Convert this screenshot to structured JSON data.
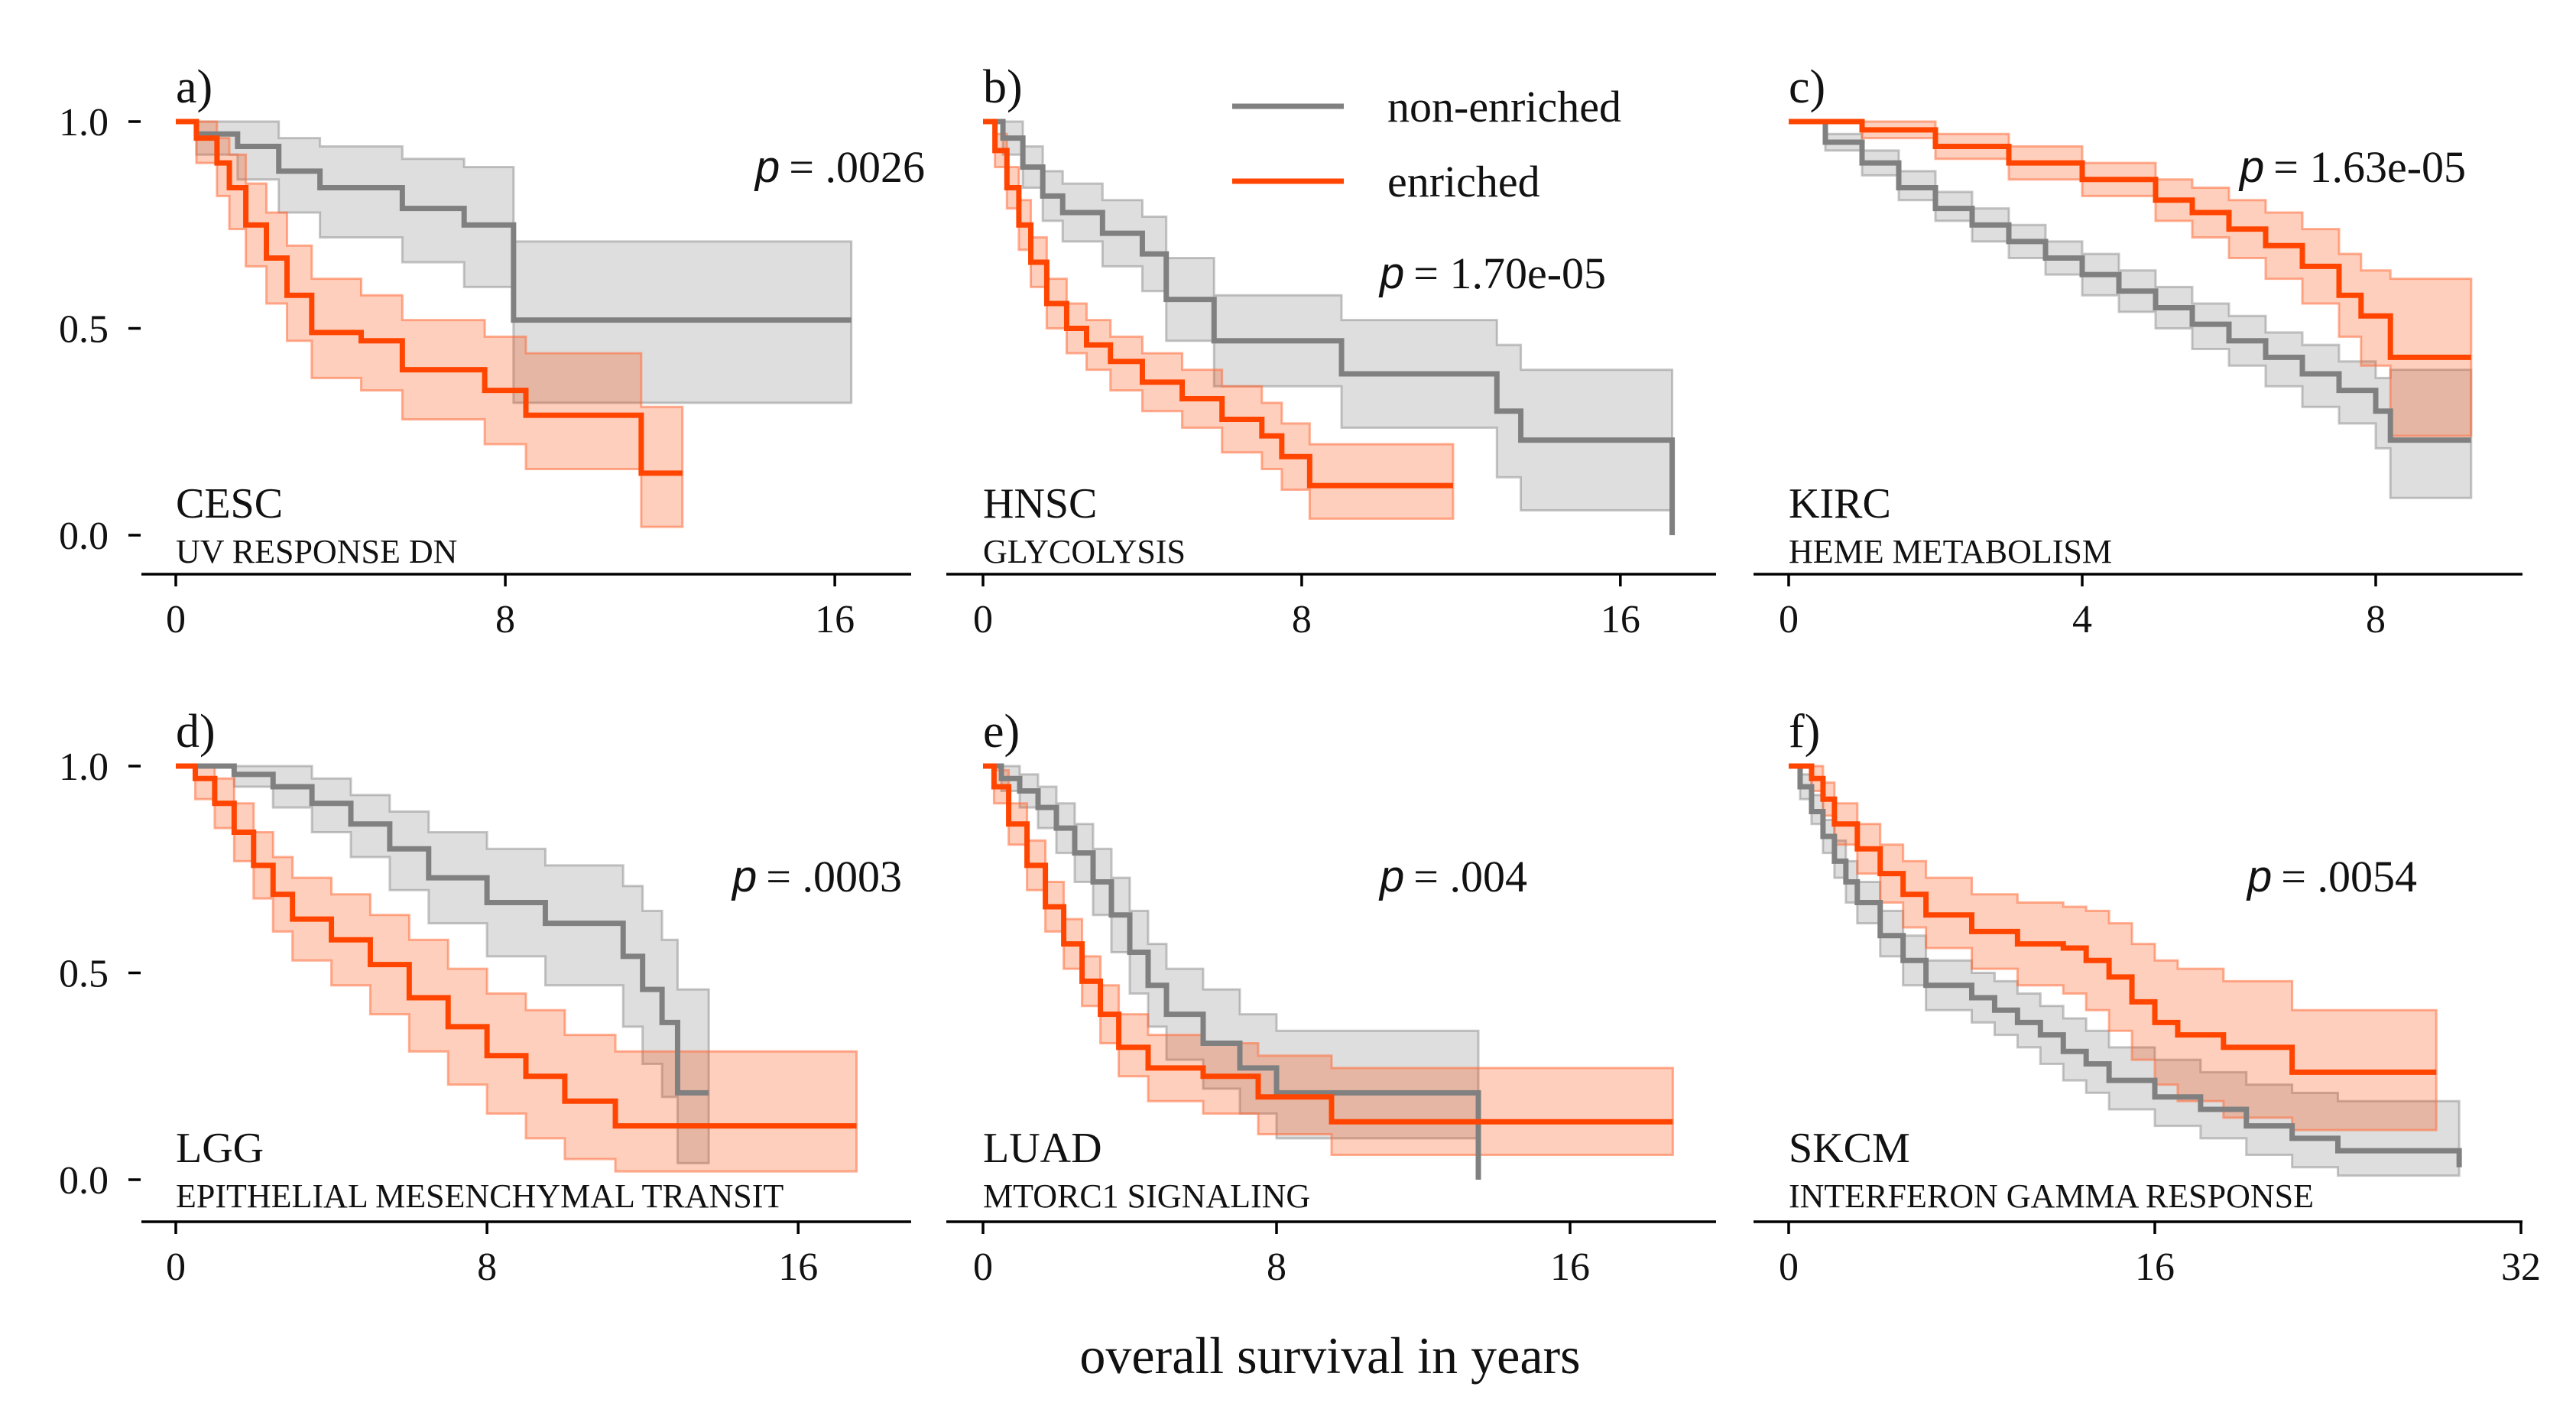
{
  "figure": {
    "xlabel": "overall survival in years",
    "legend": {
      "position": "top-center",
      "entries": [
        "non-enriched",
        "enriched"
      ]
    },
    "p_symbol": "p",
    "colors": {
      "non_enriched": "#808080",
      "enriched": "#ff4500"
    }
  },
  "chart_data": [
    {
      "type": "line",
      "panel": "a)",
      "cancer": "CESC",
      "gene_set": "UV RESPONSE DN",
      "p_value": "= .0026",
      "xlim": [
        0,
        17
      ],
      "ylim": [
        0,
        1
      ],
      "xticks": [
        "0",
        "8",
        "16"
      ],
      "yticks": [
        "0.0",
        "0.5",
        "1.0"
      ],
      "series": [
        {
          "name": "non-enriched",
          "x": [
            0,
            0.5,
            1.5,
            2.5,
            3.5,
            5.5,
            7,
            8.2,
            8.2,
            16.4
          ],
          "y": [
            1.0,
            0.97,
            0.94,
            0.88,
            0.84,
            0.79,
            0.75,
            0.7,
            0.52,
            0.52
          ],
          "lo": [
            1.0,
            0.92,
            0.86,
            0.78,
            0.72,
            0.66,
            0.6,
            0.53,
            0.32,
            0.32
          ],
          "hi": [
            1.0,
            1.0,
            1.0,
            0.96,
            0.94,
            0.91,
            0.89,
            0.86,
            0.71,
            0.71
          ]
        },
        {
          "name": "enriched",
          "x": [
            0,
            0.5,
            1,
            1.3,
            1.7,
            2.2,
            2.7,
            3.3,
            4.5,
            5.5,
            7.5,
            8.5,
            11.3,
            11.3,
            12.3
          ],
          "y": [
            1.0,
            0.96,
            0.9,
            0.84,
            0.75,
            0.67,
            0.58,
            0.49,
            0.47,
            0.4,
            0.35,
            0.29,
            0.29,
            0.15,
            0.15
          ],
          "lo": [
            1.0,
            0.9,
            0.82,
            0.74,
            0.65,
            0.56,
            0.47,
            0.38,
            0.35,
            0.28,
            0.22,
            0.16,
            0.1,
            0.02,
            0.02
          ],
          "hi": [
            1.0,
            1.0,
            0.96,
            0.92,
            0.85,
            0.78,
            0.7,
            0.62,
            0.58,
            0.52,
            0.48,
            0.44,
            0.44,
            0.31,
            0.31
          ]
        }
      ]
    },
    {
      "type": "line",
      "panel": "b)",
      "cancer": "HNSC",
      "gene_set": "GLYCOLYSIS",
      "p_value": "= 1.70e-05",
      "xlim": [
        0,
        17.5
      ],
      "ylim": [
        0,
        1
      ],
      "xticks": [
        "0",
        "8",
        "16"
      ],
      "yticks": [],
      "series": [
        {
          "name": "non-enriched",
          "x": [
            0,
            0.5,
            1,
            1.5,
            2,
            3,
            4,
            4.6,
            5.8,
            9,
            12.9,
            13.5,
            17.3,
            17.3
          ],
          "y": [
            1.0,
            0.96,
            0.89,
            0.82,
            0.78,
            0.73,
            0.68,
            0.57,
            0.47,
            0.39,
            0.3,
            0.23,
            0.16,
            0.0
          ],
          "lo": [
            1.0,
            0.92,
            0.84,
            0.76,
            0.71,
            0.65,
            0.59,
            0.47,
            0.36,
            0.26,
            0.14,
            0.06,
            0.02,
            0.0
          ],
          "hi": [
            1.0,
            1.0,
            0.94,
            0.88,
            0.85,
            0.81,
            0.77,
            0.67,
            0.58,
            0.52,
            0.46,
            0.4,
            0.36,
            0.36
          ]
        },
        {
          "name": "enriched",
          "x": [
            0,
            0.3,
            0.6,
            0.9,
            1.2,
            1.6,
            2.1,
            2.6,
            3.2,
            4,
            5,
            6,
            7,
            7.5,
            8.2,
            11.8
          ],
          "y": [
            1.0,
            0.93,
            0.84,
            0.75,
            0.66,
            0.56,
            0.5,
            0.46,
            0.42,
            0.37,
            0.33,
            0.28,
            0.24,
            0.19,
            0.12,
            0.12
          ],
          "lo": [
            1.0,
            0.89,
            0.79,
            0.69,
            0.6,
            0.5,
            0.44,
            0.4,
            0.35,
            0.3,
            0.26,
            0.2,
            0.16,
            0.11,
            0.04,
            0.04
          ],
          "hi": [
            1.0,
            0.97,
            0.89,
            0.81,
            0.72,
            0.62,
            0.56,
            0.52,
            0.48,
            0.44,
            0.4,
            0.36,
            0.32,
            0.27,
            0.22,
            0.22
          ]
        }
      ]
    },
    {
      "type": "line",
      "panel": "c)",
      "cancer": "KIRC",
      "gene_set": "HEME METABOLISM",
      "p_value": "= 1.63e-05",
      "xlim": [
        0,
        9.5
      ],
      "ylim": [
        0,
        1
      ],
      "xticks": [
        "0",
        "4",
        "8"
      ],
      "yticks": [],
      "series": [
        {
          "name": "non-enriched",
          "x": [
            0,
            0.5,
            1,
            1.5,
            2,
            2.5,
            3,
            3.5,
            4,
            4.5,
            5,
            5.5,
            6,
            6.5,
            7,
            7.5,
            8,
            8.2,
            9.3
          ],
          "y": [
            1.0,
            0.95,
            0.9,
            0.84,
            0.79,
            0.75,
            0.71,
            0.67,
            0.63,
            0.59,
            0.55,
            0.51,
            0.47,
            0.43,
            0.39,
            0.35,
            0.3,
            0.23,
            0.23
          ],
          "lo": [
            1.0,
            0.93,
            0.87,
            0.81,
            0.76,
            0.71,
            0.67,
            0.63,
            0.58,
            0.54,
            0.5,
            0.45,
            0.41,
            0.36,
            0.31,
            0.27,
            0.21,
            0.09,
            0.09
          ],
          "hi": [
            1.0,
            0.97,
            0.93,
            0.88,
            0.83,
            0.79,
            0.75,
            0.71,
            0.68,
            0.64,
            0.6,
            0.56,
            0.53,
            0.49,
            0.46,
            0.42,
            0.38,
            0.4,
            0.4
          ]
        },
        {
          "name": "enriched",
          "x": [
            0,
            1,
            2,
            3,
            4,
            5,
            5.5,
            6,
            6.5,
            7,
            7.5,
            7.8,
            8.2,
            9.3
          ],
          "y": [
            1.0,
            0.98,
            0.94,
            0.9,
            0.86,
            0.81,
            0.78,
            0.74,
            0.7,
            0.65,
            0.58,
            0.53,
            0.43,
            0.43
          ],
          "lo": [
            1.0,
            0.96,
            0.91,
            0.86,
            0.82,
            0.76,
            0.72,
            0.67,
            0.62,
            0.56,
            0.48,
            0.41,
            0.24,
            0.24
          ],
          "hi": [
            1.0,
            1.0,
            0.97,
            0.94,
            0.9,
            0.86,
            0.84,
            0.81,
            0.78,
            0.74,
            0.68,
            0.64,
            0.62,
            0.62
          ]
        }
      ]
    },
    {
      "type": "line",
      "panel": "d)",
      "cancer": "LGG",
      "gene_set": "EPITHELIAL MESENCHYMAL TRANSIT",
      "p_value": "= .0003",
      "xlim": [
        0,
        18
      ],
      "ylim": [
        0,
        1
      ],
      "xticks": [
        "0",
        "8",
        "16"
      ],
      "yticks": [
        "0.0",
        "0.5",
        "1.0"
      ],
      "series": [
        {
          "name": "non-enriched",
          "x": [
            0,
            1.5,
            2.5,
            3.5,
            4.5,
            5.5,
            6.5,
            8,
            9.5,
            11.5,
            12,
            12.5,
            12.9,
            12.9,
            13.7
          ],
          "y": [
            1.0,
            0.98,
            0.95,
            0.91,
            0.86,
            0.8,
            0.73,
            0.67,
            0.62,
            0.54,
            0.46,
            0.38,
            0.3,
            0.21,
            0.21
          ],
          "lo": [
            1.0,
            0.95,
            0.9,
            0.84,
            0.78,
            0.7,
            0.62,
            0.54,
            0.47,
            0.37,
            0.28,
            0.2,
            0.12,
            0.04,
            0.04
          ],
          "hi": [
            1.0,
            1.0,
            1.0,
            0.97,
            0.93,
            0.89,
            0.84,
            0.8,
            0.76,
            0.71,
            0.65,
            0.58,
            0.48,
            0.46,
            0.46
          ]
        },
        {
          "name": "enriched",
          "x": [
            0,
            0.5,
            1,
            1.5,
            2,
            2.5,
            3,
            4,
            5,
            6,
            7,
            8,
            9,
            10,
            11.3,
            17.5
          ],
          "y": [
            1.0,
            0.97,
            0.91,
            0.84,
            0.76,
            0.69,
            0.63,
            0.58,
            0.52,
            0.44,
            0.37,
            0.3,
            0.25,
            0.19,
            0.13,
            0.13
          ],
          "lo": [
            1.0,
            0.92,
            0.85,
            0.77,
            0.68,
            0.6,
            0.53,
            0.47,
            0.4,
            0.31,
            0.23,
            0.16,
            0.1,
            0.05,
            0.02,
            0.02
          ],
          "hi": [
            1.0,
            1.0,
            0.97,
            0.91,
            0.84,
            0.78,
            0.73,
            0.69,
            0.64,
            0.58,
            0.51,
            0.45,
            0.41,
            0.35,
            0.31,
            0.31
          ]
        }
      ]
    },
    {
      "type": "line",
      "panel": "e)",
      "cancer": "LUAD",
      "gene_set": "MTORC1 SIGNALING",
      "p_value": "= .004",
      "xlim": [
        0,
        19
      ],
      "ylim": [
        0,
        1
      ],
      "xticks": [
        "0",
        "8",
        "16"
      ],
      "yticks": [],
      "series": [
        {
          "name": "non-enriched",
          "x": [
            0,
            0.5,
            1,
            1.5,
            2,
            2.5,
            3,
            3.5,
            4,
            4.5,
            5,
            6,
            7,
            8,
            13.5,
            13.5
          ],
          "y": [
            1.0,
            0.97,
            0.94,
            0.9,
            0.85,
            0.79,
            0.72,
            0.64,
            0.55,
            0.47,
            0.4,
            0.33,
            0.27,
            0.21,
            0.21,
            0.0
          ],
          "lo": [
            1.0,
            0.94,
            0.9,
            0.85,
            0.79,
            0.72,
            0.64,
            0.55,
            0.45,
            0.37,
            0.29,
            0.22,
            0.16,
            0.1,
            0.1,
            0.0
          ],
          "hi": [
            1.0,
            1.0,
            0.98,
            0.95,
            0.91,
            0.86,
            0.8,
            0.73,
            0.65,
            0.57,
            0.51,
            0.46,
            0.4,
            0.36,
            0.36,
            0.36
          ]
        },
        {
          "name": "enriched",
          "x": [
            0,
            0.3,
            0.7,
            1.2,
            1.7,
            2.2,
            2.7,
            3.2,
            3.7,
            4.5,
            6,
            7.5,
            9.5,
            18.8
          ],
          "y": [
            1.0,
            0.95,
            0.86,
            0.76,
            0.66,
            0.57,
            0.48,
            0.4,
            0.32,
            0.27,
            0.25,
            0.2,
            0.14,
            0.14
          ],
          "lo": [
            1.0,
            0.91,
            0.81,
            0.7,
            0.6,
            0.51,
            0.42,
            0.33,
            0.25,
            0.19,
            0.16,
            0.11,
            0.06,
            0.06
          ],
          "hi": [
            1.0,
            0.99,
            0.91,
            0.82,
            0.72,
            0.63,
            0.54,
            0.47,
            0.4,
            0.35,
            0.33,
            0.3,
            0.27,
            0.27
          ]
        }
      ]
    },
    {
      "type": "line",
      "panel": "f)",
      "cancer": "SKCM",
      "gene_set": "INTERFERON GAMMA RESPONSE",
      "p_value": "= .0054",
      "xlim": [
        0,
        32
      ],
      "ylim": [
        0,
        1
      ],
      "xticks": [
        "0",
        "16",
        "32"
      ],
      "yticks": [],
      "series": [
        {
          "name": "non-enriched",
          "x": [
            0,
            0.5,
            1,
            1.5,
            2,
            2.5,
            3,
            4,
            5,
            6,
            8,
            9,
            10,
            11,
            12,
            13,
            14,
            16,
            18,
            20,
            22,
            24,
            29.3,
            29.3
          ],
          "y": [
            1.0,
            0.95,
            0.89,
            0.83,
            0.77,
            0.72,
            0.67,
            0.59,
            0.53,
            0.47,
            0.44,
            0.41,
            0.38,
            0.35,
            0.31,
            0.28,
            0.24,
            0.2,
            0.17,
            0.13,
            0.1,
            0.07,
            0.07,
            0.03
          ],
          "lo": [
            1.0,
            0.92,
            0.86,
            0.79,
            0.73,
            0.67,
            0.62,
            0.54,
            0.47,
            0.41,
            0.38,
            0.35,
            0.32,
            0.28,
            0.24,
            0.21,
            0.17,
            0.13,
            0.1,
            0.06,
            0.03,
            0.01,
            0.01,
            0.01
          ],
          "hi": [
            1.0,
            0.98,
            0.93,
            0.87,
            0.82,
            0.77,
            0.72,
            0.65,
            0.59,
            0.53,
            0.5,
            0.48,
            0.45,
            0.42,
            0.39,
            0.36,
            0.32,
            0.29,
            0.26,
            0.23,
            0.21,
            0.19,
            0.19,
            0.19
          ]
        },
        {
          "name": "enriched",
          "x": [
            0,
            1,
            1.5,
            2,
            3,
            4,
            5,
            6,
            8,
            10,
            12,
            13,
            14,
            15,
            16,
            17,
            19,
            22,
            28.3
          ],
          "y": [
            1.0,
            0.97,
            0.92,
            0.86,
            0.8,
            0.74,
            0.69,
            0.64,
            0.6,
            0.57,
            0.56,
            0.53,
            0.49,
            0.43,
            0.38,
            0.35,
            0.32,
            0.26,
            0.26
          ],
          "lo": [
            1.0,
            0.94,
            0.88,
            0.81,
            0.74,
            0.67,
            0.61,
            0.56,
            0.51,
            0.47,
            0.45,
            0.41,
            0.36,
            0.29,
            0.23,
            0.19,
            0.15,
            0.12,
            0.12
          ],
          "hi": [
            1.0,
            1.0,
            0.96,
            0.91,
            0.86,
            0.81,
            0.77,
            0.73,
            0.69,
            0.67,
            0.66,
            0.65,
            0.62,
            0.57,
            0.53,
            0.51,
            0.48,
            0.41,
            0.41
          ]
        }
      ]
    }
  ]
}
